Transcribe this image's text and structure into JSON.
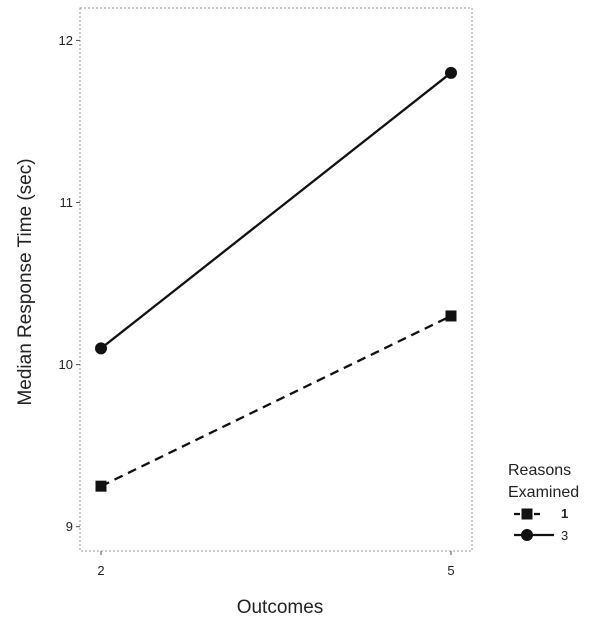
{
  "chart_data": {
    "type": "line",
    "xlabel": "Outcomes",
    "ylabel": "Median Response Time (sec)",
    "x": [
      "2",
      "5"
    ],
    "ylim": [
      8.85,
      12.2
    ],
    "yticks": [
      9,
      10,
      11,
      12
    ],
    "grid": false,
    "legend": {
      "title_line1": "Reasons",
      "title_line2": "Examined",
      "placement": "right-bottom"
    },
    "series": [
      {
        "name": "1",
        "marker": "square",
        "line_style": "dashed",
        "values": [
          9.25,
          10.3
        ]
      },
      {
        "name": "3",
        "marker": "circle",
        "line_style": "solid",
        "values": [
          10.1,
          11.8
        ]
      }
    ]
  }
}
